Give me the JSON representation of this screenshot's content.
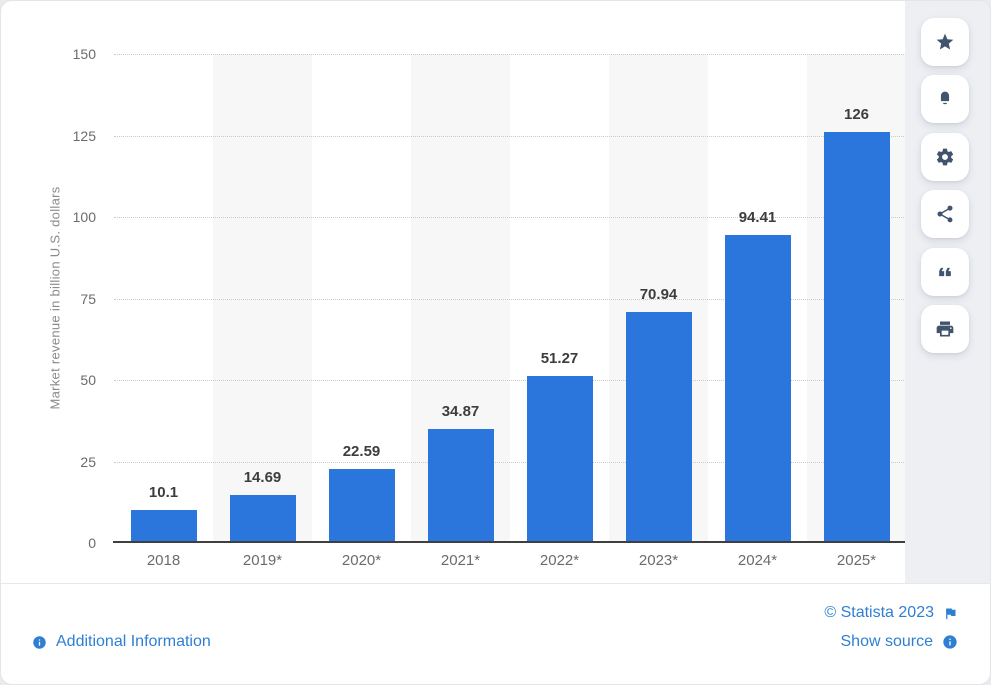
{
  "chart_data": {
    "type": "bar",
    "categories": [
      "2018",
      "2019*",
      "2020*",
      "2021*",
      "2022*",
      "2023*",
      "2024*",
      "2025*"
    ],
    "values": [
      10.1,
      14.69,
      22.59,
      34.87,
      51.27,
      70.94,
      94.41,
      126
    ],
    "value_labels": [
      "10.1",
      "14.69",
      "22.59",
      "34.87",
      "51.27",
      "70.94",
      "94.41",
      "126"
    ],
    "title": "",
    "xlabel": "",
    "ylabel": "Market revenue in billion U.S. dollars",
    "ylim": [
      0,
      150
    ],
    "yticks": [
      0,
      25,
      50,
      75,
      100,
      125,
      150
    ],
    "grid": "horizontal-dotted",
    "legend": "none",
    "bar_color": "#2a76dd",
    "band_color": "#f7f7f8"
  },
  "sidebar": {
    "items": [
      {
        "id": "favorite",
        "icon": "star-icon"
      },
      {
        "id": "notifications",
        "icon": "bell-icon"
      },
      {
        "id": "settings",
        "icon": "gear-icon"
      },
      {
        "id": "share",
        "icon": "share-icon"
      },
      {
        "id": "cite",
        "icon": "quote-icon"
      },
      {
        "id": "print",
        "icon": "print-icon"
      }
    ],
    "icon_color": "#41546e"
  },
  "footer": {
    "additional_information": "Additional Information",
    "copyright": "© Statista 2023",
    "show_source": "Show source"
  },
  "colors": {
    "bar": "#2a76dd",
    "link": "#2e7fd4",
    "axis_text": "#6b6b6b",
    "value_label": "#3d3d3d",
    "axis_line": "#3f3f3f",
    "gridline": "#c9c9c9",
    "band": "#f7f7f8",
    "sidebar_bg": "#edeff3",
    "card_border": "#e3e5e9"
  }
}
